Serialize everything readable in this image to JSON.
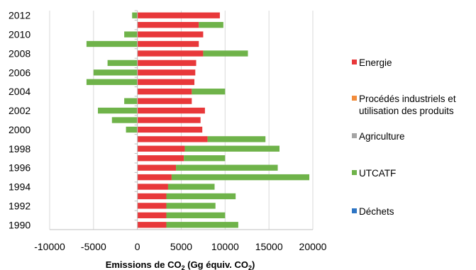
{
  "chart_data": {
    "type": "bar",
    "orientation": "horizontal",
    "stacked": true,
    "xlabel": "Emissions de CO",
    "xlabel_sub1": "2",
    "xlabel_mid": " (Gg équiv. CO",
    "xlabel_sub2": "2",
    "xlabel_end": ")",
    "xlim": [
      -10000,
      20000
    ],
    "xticks": [
      "-10000",
      "-5000",
      "0",
      "5000",
      "10000",
      "15000",
      "20000"
    ],
    "xtick_values": [
      -10000,
      -5000,
      0,
      5000,
      10000,
      15000,
      20000
    ],
    "grid": "vertical",
    "legend_position": "right",
    "categories": [
      1990,
      1991,
      1992,
      1993,
      1994,
      1995,
      1996,
      1997,
      1998,
      1999,
      2000,
      2001,
      2002,
      2003,
      2004,
      2005,
      2006,
      2007,
      2008,
      2009,
      2010,
      2011,
      2012
    ],
    "ytick_labels": [
      "1990",
      "1992",
      "1994",
      "1996",
      "1998",
      "2000",
      "2002",
      "2004",
      "2006",
      "2008",
      "2010",
      "2012"
    ],
    "series": [
      {
        "name": "Energie",
        "color": "#e8383a",
        "values": [
          3300,
          3300,
          3300,
          3300,
          3500,
          3900,
          4400,
          5300,
          5400,
          8000,
          7400,
          7200,
          7700,
          6200,
          6200,
          6500,
          6600,
          6700,
          7500,
          7000,
          7500,
          7000,
          9400
        ]
      },
      {
        "name": "Procédés industriels et\nutilisation des produits",
        "color": "#f28c3c",
        "values": [
          0,
          0,
          0,
          0,
          0,
          0,
          0,
          0,
          0,
          0,
          0,
          0,
          0,
          0,
          0,
          0,
          0,
          0,
          0,
          0,
          0,
          0,
          0
        ]
      },
      {
        "name": "Agriculture",
        "color": "#a5a5a5",
        "values": [
          0,
          0,
          0,
          0,
          0,
          0,
          0,
          0,
          0,
          0,
          0,
          0,
          0,
          0,
          0,
          0,
          0,
          0,
          0,
          0,
          0,
          0,
          0
        ]
      },
      {
        "name": "UTCATF",
        "color": "#6fb34a",
        "values": [
          8200,
          6700,
          5600,
          7900,
          5300,
          15700,
          11600,
          4700,
          10800,
          6600,
          -1300,
          -2900,
          -4500,
          -1500,
          3800,
          -5800,
          -5000,
          -3400,
          5100,
          -5800,
          -1500,
          2800,
          -600
        ]
      },
      {
        "name": "Déchets",
        "color": "#2e75c4",
        "values": [
          0,
          0,
          0,
          0,
          0,
          0,
          0,
          0,
          0,
          0,
          0,
          0,
          0,
          0,
          0,
          0,
          0,
          0,
          0,
          0,
          0,
          0,
          0
        ]
      }
    ]
  }
}
